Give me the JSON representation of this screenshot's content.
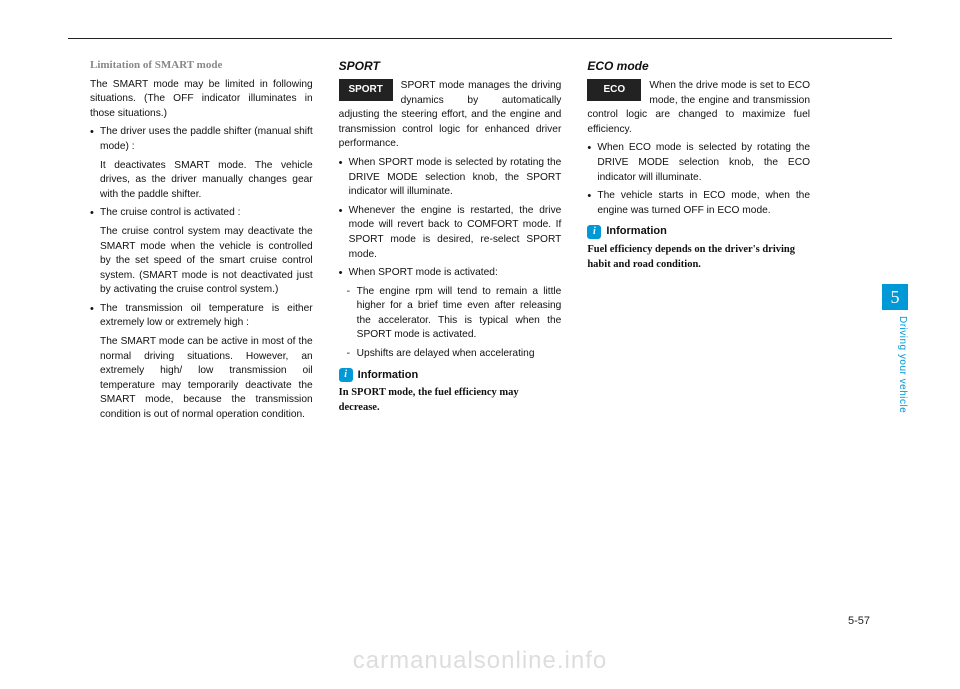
{
  "colors": {
    "accent": "#0099d8",
    "badge_bg": "#222222",
    "badge_fg": "#ffffff",
    "text": "#111111",
    "subhead": "#888888",
    "watermark": "#dddddd",
    "rule": "#222222",
    "bg": "#ffffff"
  },
  "typography": {
    "body_size_pt": 10.2,
    "title_size_pt": 12,
    "info_size_pt": 10.5,
    "watermark_size_pt": 24
  },
  "col1": {
    "subhead": "Limitation of SMART mode",
    "intro": "The SMART mode may be limited in following situations. (The OFF indicator illuminates in those situations.)",
    "b1": "The driver uses the paddle shifter (manual shift mode) :",
    "b1d": "It deactivates SMART mode. The vehicle drives, as the driver manually changes gear with the paddle shifter.",
    "b2": "The cruise control is activated :",
    "b2d": "The cruise control system may deactivate the SMART mode when the vehicle is controlled by the set speed of the smart cruise control system. (SMART mode is not deactivated just by activating the cruise control system.)",
    "b3": "The transmission oil temperature is either extremely low or extremely high :",
    "b3d": "The SMART mode can be active in most of the normal driving situations. However, an extremely high/ low transmission oil temperature may temporarily deactivate the SMART mode, because the transmission condition is out of normal operation condition."
  },
  "col2": {
    "title": "SPORT",
    "badge": "SPORT",
    "intro": "SPORT mode manages the driving dynamics by automatically adjusting the steering effort, and the engine and transmission control logic for enhanced driver performance.",
    "b1": "When SPORT mode is selected by rotating the DRIVE MODE selection knob, the SPORT indicator will illuminate.",
    "b2": "Whenever the engine is restarted, the drive mode will revert back to COMFORT mode. If SPORT mode is desired, re-select SPORT mode.",
    "b3": "When SPORT mode is activated:",
    "d1": "The engine rpm will tend to remain a little higher for a brief time even after releasing the accelerator. This is typical when the SPORT mode is activated.",
    "d2": "Upshifts are delayed when accelerating",
    "info_label": "Information",
    "info_text": "In SPORT mode, the fuel efficiency may decrease."
  },
  "col3": {
    "title": "ECO mode",
    "badge": "ECO",
    "intro": "When the drive mode is set to ECO mode, the engine and transmission control logic are changed to maximize fuel efficiency.",
    "b1": "When ECO mode is selected by rotating the DRIVE MODE selection knob, the ECO indicator will illuminate.",
    "b2": "The vehicle starts in ECO mode, when the engine was turned OFF in ECO mode.",
    "info_label": "Information",
    "info_text": "Fuel efficiency depends on the driver's driving habit and road condition."
  },
  "side": {
    "chapter": "5",
    "label": "Driving your vehicle"
  },
  "page_num": "5-57",
  "watermark": "carmanualsonline.info"
}
